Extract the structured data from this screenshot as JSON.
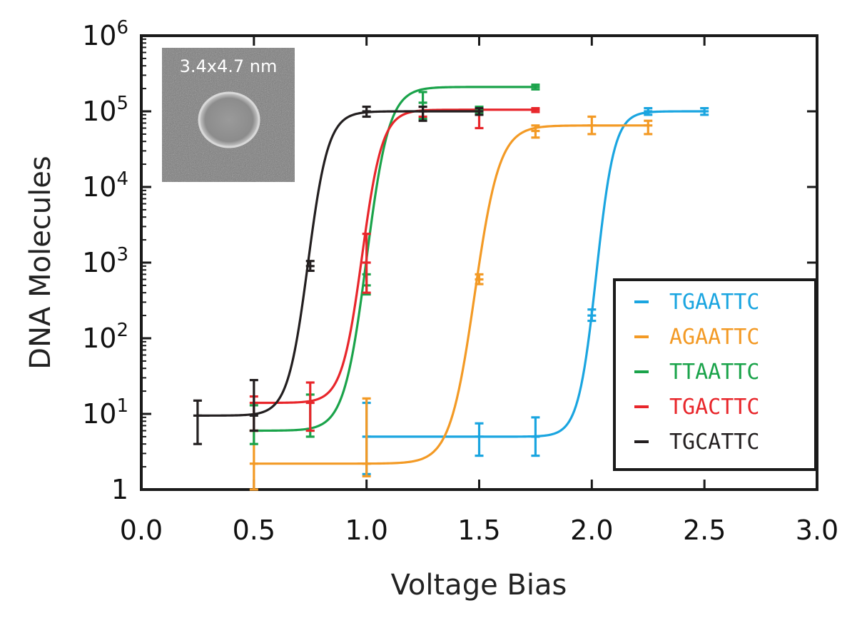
{
  "chart_data": {
    "type": "line",
    "title": "",
    "xlabel": "Voltage Bias",
    "ylabel": "DNA Molecules",
    "x_scale": "linear",
    "y_scale": "log",
    "xlim": [
      0.0,
      3.0
    ],
    "ylim": [
      1,
      1000000
    ],
    "x_ticks": [
      "0.0",
      "0.5",
      "1.0",
      "1.5",
      "2.0",
      "2.5",
      "3.0"
    ],
    "y_ticks": [
      {
        "base": "1",
        "exp": ""
      },
      {
        "base": "10",
        "exp": "1"
      },
      {
        "base": "10",
        "exp": "2"
      },
      {
        "base": "10",
        "exp": "3"
      },
      {
        "base": "10",
        "exp": "4"
      },
      {
        "base": "10",
        "exp": "5"
      },
      {
        "base": "10",
        "exp": "6"
      }
    ],
    "grid": false,
    "legend_position": "bottom-right",
    "inset_label": "3.4x4.7 nm",
    "series": [
      {
        "name": "TGAATTC",
        "color": "#1aa5e0",
        "points": [
          {
            "x": 1.0,
            "y": 5,
            "lo": 1.6,
            "hi": 14
          },
          {
            "x": 1.5,
            "y": 5,
            "lo": 2.8,
            "hi": 7.5
          },
          {
            "x": 1.75,
            "y": 5,
            "lo": 2.8,
            "hi": 9
          },
          {
            "x": 2.0,
            "y": 200,
            "lo": 170,
            "hi": 240
          },
          {
            "x": 2.25,
            "y": 100000,
            "lo": 90000,
            "hi": 110000
          },
          {
            "x": 2.5,
            "y": 100000,
            "lo": 90000,
            "hi": 110000
          }
        ],
        "fit": {
          "low": 5,
          "high": 100000,
          "mid": 2.02,
          "width": 0.04,
          "x_start": 1.0,
          "x_end": 2.5
        }
      },
      {
        "name": "AGAATTC",
        "color": "#f39a25",
        "points": [
          {
            "x": 0.5,
            "y": 2.2,
            "lo": 1,
            "hi": 6
          },
          {
            "x": 1.0,
            "y": 2.2,
            "lo": 1.5,
            "hi": 16
          },
          {
            "x": 1.5,
            "y": 600,
            "lo": 520,
            "hi": 700
          },
          {
            "x": 1.75,
            "y": 55000,
            "lo": 45000,
            "hi": 65000
          },
          {
            "x": 2.0,
            "y": 65000,
            "lo": 50000,
            "hi": 85000
          },
          {
            "x": 2.25,
            "y": 65000,
            "lo": 50000,
            "hi": 75000
          }
        ],
        "fit": {
          "low": 2.2,
          "high": 65000,
          "mid": 1.48,
          "width": 0.055,
          "x_start": 0.5,
          "x_end": 2.25
        }
      },
      {
        "name": "TTAATTC",
        "color": "#1aa34a",
        "points": [
          {
            "x": 0.5,
            "y": 6,
            "lo": 4,
            "hi": 13
          },
          {
            "x": 0.75,
            "y": 6,
            "lo": 5,
            "hi": 18
          },
          {
            "x": 1.0,
            "y": 500,
            "lo": 380,
            "hi": 700
          },
          {
            "x": 1.25,
            "y": 130000,
            "lo": 80000,
            "hi": 180000
          },
          {
            "x": 1.5,
            "y": 105000,
            "lo": 95000,
            "hi": 115000
          },
          {
            "x": 1.75,
            "y": 210000,
            "lo": 195000,
            "hi": 225000
          }
        ],
        "fit": {
          "low": 6,
          "high": 210000,
          "mid": 1.0,
          "width": 0.05,
          "x_start": 0.5,
          "x_end": 1.75
        }
      },
      {
        "name": "TGACTTC",
        "color": "#e8262b",
        "points": [
          {
            "x": 0.5,
            "y": 14,
            "lo": 6,
            "hi": 17
          },
          {
            "x": 0.75,
            "y": 14,
            "lo": 6,
            "hi": 26
          },
          {
            "x": 1.0,
            "y": 1000,
            "lo": 400,
            "hi": 2400
          },
          {
            "x": 1.25,
            "y": 100000,
            "lo": 85000,
            "hi": 115000
          },
          {
            "x": 1.5,
            "y": 100000,
            "lo": 60000,
            "hi": 110000
          },
          {
            "x": 1.75,
            "y": 105000,
            "lo": 98000,
            "hi": 110000
          }
        ],
        "fit": {
          "low": 14,
          "high": 105000,
          "mid": 0.98,
          "width": 0.045,
          "x_start": 0.5,
          "x_end": 1.75
        }
      },
      {
        "name": "TGCATTC",
        "color": "#231f20",
        "points": [
          {
            "x": 0.25,
            "y": 9.5,
            "lo": 4,
            "hi": 15
          },
          {
            "x": 0.5,
            "y": 9.5,
            "lo": 6,
            "hi": 28
          },
          {
            "x": 0.75,
            "y": 900,
            "lo": 780,
            "hi": 1050
          },
          {
            "x": 1.0,
            "y": 100000,
            "lo": 85000,
            "hi": 115000
          },
          {
            "x": 1.25,
            "y": 100000,
            "lo": 75000,
            "hi": 115000
          },
          {
            "x": 1.5,
            "y": 100000,
            "lo": 90000,
            "hi": 110000
          }
        ],
        "fit": {
          "low": 9.5,
          "high": 100000,
          "mid": 0.74,
          "width": 0.045,
          "x_start": 0.25,
          "x_end": 1.5
        }
      }
    ]
  }
}
